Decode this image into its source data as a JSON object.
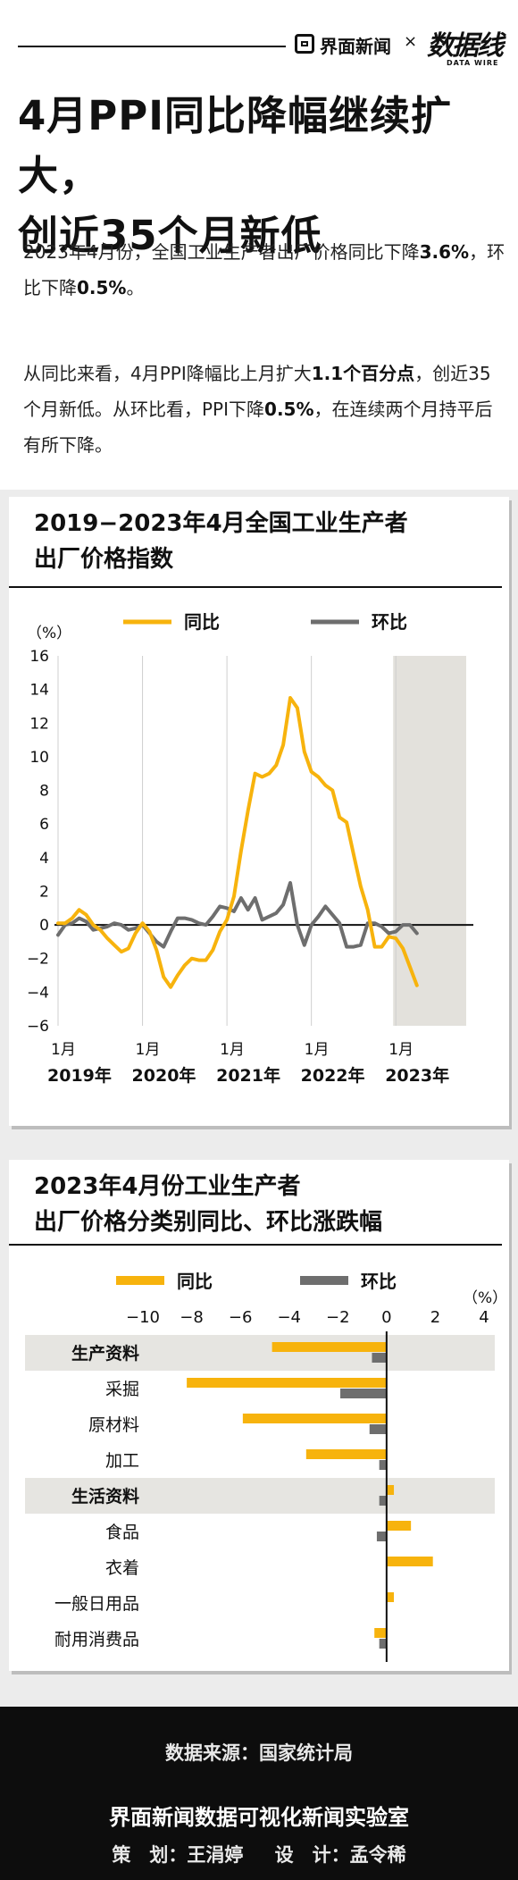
{
  "header": {
    "brand": "界面新闻",
    "separator": "×",
    "brand2": "数据线",
    "brand2_sub": "DATA WIRE"
  },
  "headline": {
    "line1": "4月PPI同比降幅继续扩大，",
    "line2": "创近35个月新低"
  },
  "intro": {
    "p1_a": "2023年4月份，全国工业生产者出厂价格同比下降",
    "p1_b1": "3.6%",
    "p1_c": "，环比下降",
    "p1_b2": "0.5%",
    "p1_d": "。",
    "p2_a": "从同比来看，4月PPI降幅比上月扩大",
    "p2_b1": "1.1个百分点",
    "p2_c": "，创近35个月新低。从环比看，PPI下降",
    "p2_b2": "0.5%",
    "p2_d": "，在连续两个月持平后有所下降。"
  },
  "colors": {
    "yoy": "#f7b30d",
    "mom": "#6e6e6e",
    "shade": "#e3e1dc",
    "group_bg": "#e6e5e1"
  },
  "chart_data": [
    {
      "type": "line",
      "title_line1": "2019−2023年4月全国工业生产者",
      "title_line2": "出厂价格指数",
      "ylabel": "（%）",
      "ylim": [
        -6,
        16
      ],
      "yticks": [
        16,
        14,
        12,
        10,
        8,
        6,
        4,
        2,
        0,
        -2,
        -4,
        -6
      ],
      "grid": true,
      "legend": "top-center",
      "x_start": "2019-01",
      "x_end": "2023-04",
      "highlight_year": "2023",
      "xtick_month_label": "1月",
      "xtick_years": [
        "2019年",
        "2020年",
        "2021年",
        "2022年",
        "2023年"
      ],
      "series": [
        {
          "name": "同比",
          "color": "#f7b30d",
          "values": [
            0.1,
            0.1,
            0.4,
            0.9,
            0.6,
            0.0,
            -0.3,
            -0.8,
            -1.2,
            -1.6,
            -1.4,
            -0.5,
            0.1,
            -0.4,
            -1.5,
            -3.1,
            -3.7,
            -3.0,
            -2.4,
            -2.0,
            -2.1,
            -2.1,
            -1.5,
            -0.4,
            0.3,
            1.7,
            4.4,
            6.8,
            9.0,
            8.8,
            9.0,
            9.5,
            10.7,
            13.5,
            12.9,
            10.3,
            9.1,
            8.8,
            8.3,
            8.0,
            6.4,
            6.1,
            4.2,
            2.3,
            0.9,
            -1.3,
            -1.3,
            -0.7,
            -0.8,
            -1.4,
            -2.5,
            -3.6
          ]
        },
        {
          "name": "环比",
          "color": "#6e6e6e",
          "values": [
            -0.6,
            0.0,
            0.1,
            0.4,
            0.2,
            -0.3,
            -0.2,
            -0.1,
            0.1,
            0.0,
            -0.3,
            -0.2,
            0.0,
            -0.5,
            -1.0,
            -1.3,
            -0.4,
            0.4,
            0.4,
            0.3,
            0.1,
            0.0,
            0.5,
            1.1,
            1.0,
            0.8,
            1.6,
            0.9,
            1.6,
            0.3,
            0.5,
            0.7,
            1.2,
            2.5,
            0.0,
            -1.2,
            0.0,
            0.5,
            1.1,
            0.6,
            0.1,
            -1.3,
            -1.3,
            -1.2,
            0.1,
            0.1,
            -0.1,
            -0.5,
            -0.4,
            0.0,
            0.0,
            -0.5
          ]
        }
      ]
    },
    {
      "type": "bar",
      "orientation": "horizontal",
      "title_line1": "2023年4月份工业生产者",
      "title_line2": "出厂价格分类别同比、环比涨跌幅",
      "unit": "（%）",
      "xlim": [
        -10,
        4
      ],
      "xticks": [
        "−10",
        "−8",
        "−6",
        "−4",
        "−2",
        "0",
        "2",
        "4"
      ],
      "legend": "top",
      "categories": [
        "生产资料",
        "采掘",
        "原材料",
        "加工",
        "生活资料",
        "食品",
        "衣着",
        "一般日用品",
        "耐用消费品"
      ],
      "group_rows": [
        0,
        4
      ],
      "series": [
        {
          "name": "同比",
          "color": "#f7b30d",
          "values": [
            -4.7,
            -8.2,
            -5.9,
            -3.3,
            0.3,
            1.0,
            1.9,
            0.3,
            -0.5
          ]
        },
        {
          "name": "环比",
          "color": "#6e6e6e",
          "values": [
            -0.6,
            -1.9,
            -0.7,
            -0.3,
            -0.3,
            -0.4,
            0.0,
            0.0,
            -0.3
          ]
        }
      ]
    }
  ],
  "footer": {
    "source": "数据来源：国家统计局",
    "lab": "界面新闻数据可视化新闻实验室",
    "planner_label": "策　划：",
    "planner": "王涓婷",
    "designer_label": "设　计：",
    "designer": "孟令稀"
  }
}
